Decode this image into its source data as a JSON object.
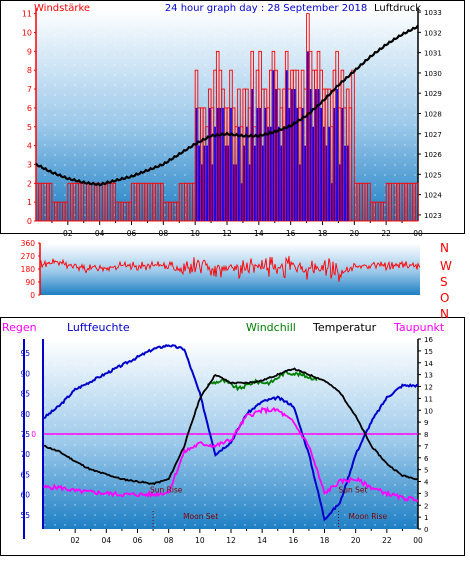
{
  "header": {
    "left_label": "Windstärke",
    "title": "24 hour graph day : 28 September 2018",
    "right_label": "Luftdruck"
  },
  "mid_panel": {
    "dir_letters": [
      "N",
      "W",
      "S",
      "O",
      "N"
    ]
  },
  "bottom_header": {
    "regen": "Regen",
    "luftfeuchte": "Luftfeuchte",
    "windchill": "Windchill",
    "temperatur": "Temperatur",
    "taupunkt": "Taupunkt"
  },
  "colors": {
    "regen": "#ff00ff",
    "luftfeuchte": "#0000cc",
    "windchill": "#008000",
    "temperatur": "#000000",
    "taupunkt": "#ff00ff",
    "wind": "#ff0000",
    "gust_fill": "#0000ff",
    "pressure": "#000000",
    "sky_top": "#ffffff",
    "sky_bottom": "#1e88c8"
  },
  "chart_data": [
    {
      "type": "bar",
      "title": "24 hour graph day : 28 September 2018",
      "left_axis_label": "Windstärke",
      "right_axis_label": "Luftdruck",
      "x_ticks": [
        "02",
        "04",
        "06",
        "08",
        "10",
        "12",
        "14",
        "16",
        "18",
        "20",
        "22",
        "00"
      ],
      "left_ticks": [
        "0",
        "1",
        "2",
        "3",
        "4",
        "5",
        "6",
        "7",
        "8",
        "9",
        "10",
        "11"
      ],
      "right_ticks": [
        "1023",
        "1024",
        "1025",
        "1026",
        "1027",
        "1028",
        "1029",
        "1030",
        "1031",
        "1032",
        "1033"
      ],
      "series": [
        {
          "name": "Windstärke",
          "x": [
            0,
            1,
            2,
            3,
            4,
            5,
            6,
            7,
            8,
            9,
            10,
            11,
            12,
            13,
            14,
            15,
            16,
            17,
            18,
            19,
            20,
            21,
            22,
            23,
            24
          ],
          "values": [
            2,
            1,
            2,
            2,
            2,
            1,
            2,
            2,
            1,
            2,
            6,
            7,
            7,
            7,
            8,
            8,
            8,
            10,
            7,
            6,
            2,
            1,
            2,
            2,
            2
          ]
        },
        {
          "name": "Luftdruck",
          "x": [
            0,
            1,
            2,
            3,
            4,
            5,
            6,
            7,
            8,
            9,
            10,
            11,
            12,
            13,
            14,
            15,
            16,
            17,
            18,
            19,
            20,
            21,
            22,
            23,
            24
          ],
          "values": [
            1025.5,
            1025.1,
            1024.8,
            1024.6,
            1024.5,
            1024.7,
            1024.9,
            1025.2,
            1025.5,
            1026.0,
            1026.5,
            1026.9,
            1027.0,
            1026.9,
            1026.9,
            1027.1,
            1027.4,
            1027.9,
            1028.6,
            1029.4,
            1030.1,
            1030.8,
            1031.4,
            1031.9,
            1032.3
          ]
        }
      ]
    },
    {
      "type": "line",
      "y_ticks": [
        "0",
        "90",
        "180",
        "270",
        "360"
      ],
      "x_ticks": [
        "02",
        "04",
        "06",
        "08",
        "10",
        "12",
        "14",
        "16",
        "18",
        "20",
        "22",
        "00"
      ],
      "series": [
        {
          "name": "Windrichtung",
          "x": [
            0,
            1,
            2,
            3,
            4,
            5,
            6,
            7,
            8,
            9,
            10,
            11,
            12,
            13,
            14,
            15,
            16,
            17,
            18,
            19,
            20,
            21,
            22,
            23,
            24
          ],
          "values": [
            210,
            230,
            200,
            180,
            190,
            200,
            200,
            200,
            210,
            180,
            200,
            190,
            190,
            180,
            200,
            190,
            200,
            170,
            200,
            150,
            200,
            210,
            200,
            210,
            200
          ]
        }
      ]
    },
    {
      "type": "line",
      "left_ticks": [
        "55",
        "60",
        "65",
        "70",
        "75",
        "80",
        "85",
        "90",
        "95"
      ],
      "right_ticks": [
        "0",
        "1",
        "2",
        "3",
        "4",
        "5",
        "6",
        "7",
        "8",
        "9",
        "10",
        "11",
        "12",
        "13",
        "14",
        "15",
        "16"
      ],
      "x_ticks": [
        "02",
        "04",
        "06",
        "08",
        "10",
        "12",
        "14",
        "16",
        "18",
        "20",
        "22",
        "00"
      ],
      "rain_value": "0",
      "annotations": [
        "Sun Rise",
        "Moon Set",
        "Sun Set",
        "Moon Rise"
      ],
      "series": [
        {
          "name": "Luftfeuchte",
          "x": [
            0,
            1,
            2,
            3,
            4,
            5,
            6,
            7,
            8,
            9,
            10,
            11,
            12,
            13,
            14,
            15,
            16,
            17,
            18,
            19,
            20,
            21,
            22,
            23,
            24
          ],
          "values": [
            79,
            82,
            86,
            88,
            90,
            92,
            94,
            96,
            97,
            96,
            85,
            70,
            73,
            80,
            83,
            84,
            82,
            70,
            54,
            58,
            70,
            78,
            84,
            87,
            87
          ]
        },
        {
          "name": "Temperatur",
          "x": [
            0,
            1,
            2,
            3,
            4,
            5,
            6,
            7,
            8,
            9,
            10,
            11,
            12,
            13,
            14,
            15,
            16,
            17,
            18,
            19,
            20,
            21,
            22,
            23,
            24
          ],
          "values": [
            7,
            6.5,
            5.7,
            5,
            4.6,
            4.2,
            4,
            3.8,
            4.2,
            7,
            11,
            13,
            12.3,
            12.3,
            12.5,
            13,
            13.5,
            13,
            12.5,
            11.5,
            9.5,
            7,
            5.5,
            4.5,
            4.2
          ]
        },
        {
          "name": "Windchill",
          "x": [
            10.5,
            11.5,
            12.5,
            13.5,
            14.5,
            15.5,
            16.5,
            17.5
          ],
          "values": [
            12.2,
            12.5,
            11.8,
            12.4,
            12.3,
            13.2,
            13.0,
            12.6
          ]
        },
        {
          "name": "Taupunkt",
          "x": [
            0,
            1,
            2,
            3,
            4,
            5,
            6,
            7,
            8,
            9,
            10,
            11,
            12,
            13,
            14,
            15,
            16,
            17,
            18,
            19,
            20,
            21,
            22,
            23,
            24
          ],
          "values": [
            3.5,
            3.5,
            3.2,
            3.1,
            3.0,
            2.9,
            2.9,
            2.9,
            3.1,
            6.5,
            7.2,
            7,
            7.5,
            9.5,
            10,
            10,
            9,
            7,
            3,
            4,
            4.2,
            3.5,
            3,
            2.6,
            2.5
          ]
        }
      ]
    }
  ]
}
